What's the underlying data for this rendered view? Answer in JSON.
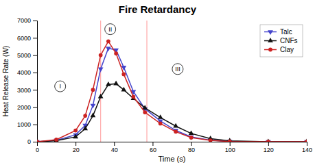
{
  "chart_data": {
    "type": "line",
    "title": "Fire Retardancy",
    "x_label": "Time (s)",
    "y_label": "Heat Release Rate (W)",
    "x": [
      0,
      10,
      20,
      25,
      29,
      33,
      37,
      41,
      45,
      50,
      56,
      64,
      72,
      80,
      90,
      100,
      120,
      140
    ],
    "series": [
      {
        "name": "Talc",
        "color": "#4444cc",
        "marker": "triangle-down",
        "values": [
          0,
          80,
          400,
          950,
          2100,
          4200,
          5400,
          5300,
          4300,
          2900,
          1900,
          1200,
          650,
          280,
          90,
          20,
          1,
          0
        ]
      },
      {
        "name": "CNFs",
        "color": "#111111",
        "marker": "triangle-up",
        "values": [
          0,
          60,
          280,
          750,
          1500,
          2600,
          3300,
          3350,
          3000,
          2500,
          1950,
          1400,
          900,
          480,
          180,
          50,
          3,
          0
        ]
      },
      {
        "name": "Clay",
        "color": "#cc2222",
        "marker": "circle",
        "values": [
          0,
          120,
          650,
          1500,
          3000,
          5000,
          5800,
          5100,
          3900,
          2600,
          1700,
          1050,
          580,
          240,
          75,
          12,
          0,
          0
        ]
      }
    ],
    "vlines": {
      "values": [
        33,
        57
      ],
      "color": "#ffaaaa"
    },
    "annotations": [
      {
        "text": "I",
        "x": 12,
        "y": 3200
      },
      {
        "text": "II",
        "x": 38,
        "y": 6500
      },
      {
        "text": "III",
        "x": 73,
        "y": 4200
      }
    ],
    "xlim": [
      0,
      140
    ],
    "ylim": [
      0,
      7000
    ],
    "xticks": [
      0,
      20,
      40,
      60,
      80,
      100,
      120,
      140
    ],
    "yticks": [
      0,
      1000,
      2000,
      3000,
      4000,
      5000,
      6000,
      7000
    ],
    "grid": false,
    "legend": "upper right"
  }
}
